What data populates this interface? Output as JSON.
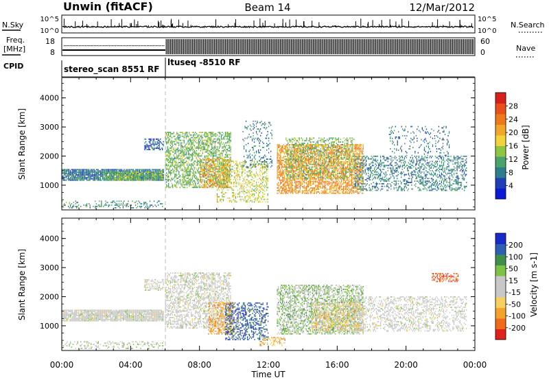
{
  "header": {
    "title_left": "Unwin (fitACF)",
    "title_center": "Beam 14",
    "title_right": "12/Mar/2012"
  },
  "strip_panels": {
    "nsky_label": "N.Sky",
    "nsky_ticks": [
      "10^5",
      "10^0"
    ],
    "nsearch_label": "N.Search",
    "nsearch_ticks": [
      "10^5",
      "10^0"
    ],
    "freq_label_line1": "Freq.",
    "freq_label_line2": "[MHz]",
    "freq_ticks": [
      "18",
      "8"
    ],
    "nave_label": "Nave",
    "nave_ticks": [
      "60",
      "0"
    ],
    "cpid_label": "CPID",
    "cpid_segments": [
      {
        "label": "stereo_scan 8551 RF",
        "start_hour": 0.0,
        "end_hour": 6.0
      },
      {
        "label": "ltuseq -8510 RF",
        "start_hour": 6.0,
        "end_hour": 24.0
      }
    ]
  },
  "colors": {
    "power_scale": [
      "#0a1ad8",
      "#1f3fb8",
      "#2d7d8c",
      "#4aa36a",
      "#8dc642",
      "#f2d33b",
      "#f4a62a",
      "#ef7a1e",
      "#e84f19",
      "#d8201a"
    ],
    "velocity_scale": [
      "#e0201a",
      "#f06a1a",
      "#f4a22a",
      "#f7d060",
      "#c8c8c8",
      "#c8c8c8",
      "#7dc242",
      "#3f8f4a",
      "#2f5fb0",
      "#1a2ac8"
    ]
  },
  "chart_data": [
    {
      "type": "heatmap",
      "name": "power",
      "xlabel": "Time UT",
      "ylabel": "Slant Range [km]",
      "xlim": [
        0,
        24
      ],
      "ylim": [
        150,
        4700
      ],
      "x_ticks": [
        "00:00",
        "04:00",
        "08:00",
        "12:00",
        "16:00",
        "20:00",
        "00:00"
      ],
      "y_ticks": [
        "1000",
        "2000",
        "3000",
        "4000"
      ],
      "y_tick_values": [
        1000,
        2000,
        3000,
        4000
      ],
      "colorbar_label": "Power [dB]",
      "colorbar_ticks": [
        "4",
        "8",
        "12",
        "16",
        "20",
        "24",
        "28"
      ],
      "colorbar_range": [
        0,
        32
      ],
      "regions": [
        {
          "t0": 0.0,
          "t1": 5.9,
          "r0": 1150,
          "r1": 1550,
          "value": 8,
          "density": 0.9
        },
        {
          "t0": 2.5,
          "t1": 5.9,
          "r0": 1150,
          "r1": 1450,
          "value": 13,
          "density": 0.8
        },
        {
          "t0": 4.8,
          "t1": 5.9,
          "r0": 2200,
          "r1": 2600,
          "value": 6,
          "density": 0.5
        },
        {
          "t0": 0.0,
          "t1": 5.9,
          "r0": 200,
          "r1": 450,
          "value": 10,
          "density": 0.25
        },
        {
          "t0": 6.0,
          "t1": 9.8,
          "r0": 900,
          "r1": 2800,
          "value": 13,
          "density": 0.55
        },
        {
          "t0": 8.0,
          "t1": 9.8,
          "r0": 900,
          "r1": 1900,
          "value": 22,
          "density": 0.45
        },
        {
          "t0": 9.0,
          "t1": 12.0,
          "r0": 400,
          "r1": 1800,
          "value": 16,
          "density": 0.35
        },
        {
          "t0": 10.5,
          "t1": 12.2,
          "r0": 1600,
          "r1": 3200,
          "value": 8,
          "density": 0.2
        },
        {
          "t0": 12.5,
          "t1": 17.5,
          "r0": 700,
          "r1": 2400,
          "value": 22,
          "density": 0.65
        },
        {
          "t0": 13.0,
          "t1": 17.0,
          "r0": 1200,
          "r1": 2600,
          "value": 13,
          "density": 0.35
        },
        {
          "t0": 17.0,
          "t1": 23.5,
          "r0": 800,
          "r1": 2000,
          "value": 9,
          "density": 0.35
        },
        {
          "t0": 19.0,
          "t1": 22.5,
          "r0": 2000,
          "r1": 3000,
          "value": 7,
          "density": 0.15
        }
      ]
    },
    {
      "type": "heatmap",
      "name": "velocity",
      "xlabel": "Time UT",
      "ylabel": "Slant Range [km]",
      "xlim": [
        0,
        24
      ],
      "ylim": [
        150,
        4700
      ],
      "x_ticks": [
        "00:00",
        "04:00",
        "08:00",
        "12:00",
        "16:00",
        "20:00",
        "00:00"
      ],
      "y_ticks": [
        "1000",
        "2000",
        "3000",
        "4000"
      ],
      "y_tick_values": [
        1000,
        2000,
        3000,
        4000
      ],
      "colorbar_label": "Velocity [m s-1]",
      "colorbar_ticks": [
        "-200",
        "-100",
        "-50",
        "-15",
        "15",
        "50",
        "100",
        "200"
      ],
      "colorbar_range": [
        -250,
        250
      ],
      "regions": [
        {
          "t0": 0.0,
          "t1": 5.9,
          "r0": 1150,
          "r1": 1550,
          "value": 0,
          "density": 0.9
        },
        {
          "t0": 4.8,
          "t1": 5.9,
          "r0": 2200,
          "r1": 2600,
          "value": 0,
          "density": 0.5
        },
        {
          "t0": 0.0,
          "t1": 5.9,
          "r0": 200,
          "r1": 450,
          "value": 40,
          "density": 0.25
        },
        {
          "t0": 6.0,
          "t1": 9.8,
          "r0": 900,
          "r1": 2800,
          "value": 0,
          "density": 0.5
        },
        {
          "t0": 8.5,
          "t1": 10.0,
          "r0": 700,
          "r1": 1800,
          "value": -120,
          "density": 0.45
        },
        {
          "t0": 9.5,
          "t1": 12.0,
          "r0": 500,
          "r1": 1800,
          "value": 180,
          "density": 0.4
        },
        {
          "t0": 11.5,
          "t1": 13.0,
          "r0": 300,
          "r1": 600,
          "value": -110,
          "density": 0.4
        },
        {
          "t0": 12.5,
          "t1": 17.5,
          "r0": 700,
          "r1": 2400,
          "value": 60,
          "density": 0.55
        },
        {
          "t0": 14.5,
          "t1": 17.5,
          "r0": 800,
          "r1": 1800,
          "value": -60,
          "density": 0.5
        },
        {
          "t0": 17.0,
          "t1": 23.5,
          "r0": 800,
          "r1": 2000,
          "value": 0,
          "density": 0.35
        },
        {
          "t0": 21.5,
          "t1": 23.0,
          "r0": 2500,
          "r1": 2800,
          "value": -190,
          "density": 0.5
        }
      ]
    }
  ]
}
